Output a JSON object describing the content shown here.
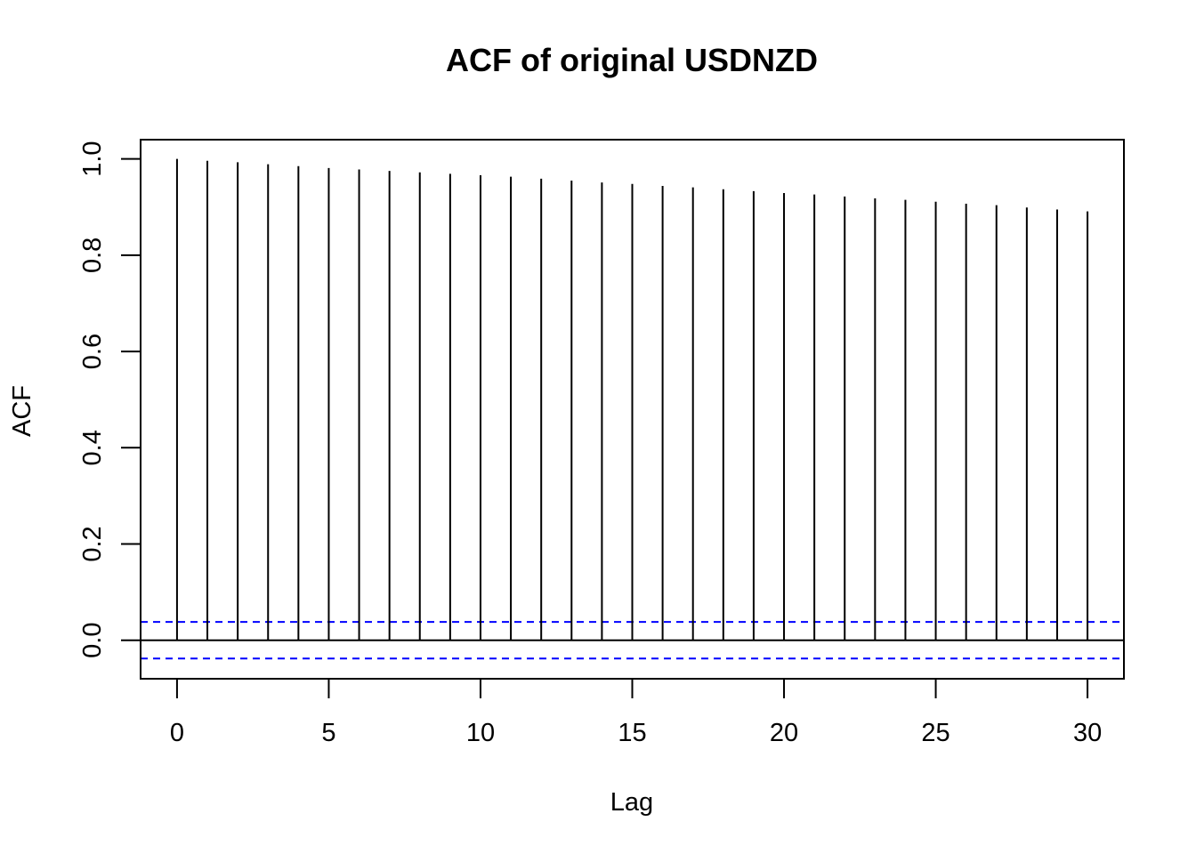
{
  "chart_data": {
    "type": "bar",
    "title": "ACF of original USDNZD",
    "xlabel": "Lag",
    "ylabel": "ACF",
    "x": [
      0,
      1,
      2,
      3,
      4,
      5,
      6,
      7,
      8,
      9,
      10,
      11,
      12,
      13,
      14,
      15,
      16,
      17,
      18,
      19,
      20,
      21,
      22,
      23,
      24,
      25,
      26,
      27,
      28,
      29,
      30
    ],
    "values": [
      1.0,
      0.996,
      0.993,
      0.989,
      0.985,
      0.981,
      0.978,
      0.975,
      0.972,
      0.969,
      0.966,
      0.963,
      0.959,
      0.955,
      0.951,
      0.948,
      0.944,
      0.941,
      0.937,
      0.933,
      0.929,
      0.926,
      0.922,
      0.918,
      0.915,
      0.911,
      0.907,
      0.904,
      0.899,
      0.895,
      0.891
    ],
    "xlim": [
      -1.2,
      31.2
    ],
    "ylim": [
      -0.08,
      1.04
    ],
    "xticks": [
      0,
      5,
      10,
      15,
      20,
      25,
      30
    ],
    "xtick_labels": [
      "0",
      "5",
      "10",
      "15",
      "20",
      "25",
      "30"
    ],
    "yticks": [
      0.0,
      0.2,
      0.4,
      0.6,
      0.8,
      1.0
    ],
    "ytick_labels": [
      "0.0",
      "0.2",
      "0.4",
      "0.6",
      "0.8",
      "1.0"
    ],
    "confidence_bounds": [
      0.038,
      -0.038
    ],
    "zero_line": 0,
    "grid": false,
    "colors": {
      "bars": "#000000",
      "confidence": "#0000ff",
      "axes": "#000000"
    }
  }
}
